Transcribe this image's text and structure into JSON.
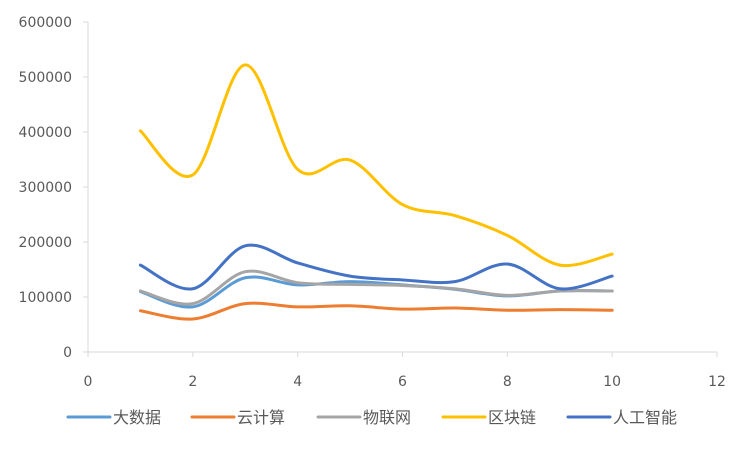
{
  "chart_data": {
    "type": "line",
    "smooth": true,
    "xlim": [
      0,
      12
    ],
    "ylim": [
      0,
      600000
    ],
    "xticks": [
      "0",
      "2",
      "4",
      "6",
      "8",
      "10",
      "12"
    ],
    "yticks": [
      "0",
      "100000",
      "200000",
      "300000",
      "400000",
      "500000",
      "600000"
    ],
    "grid": false,
    "legend_position": "bottom",
    "x": [
      1,
      2,
      3,
      4,
      5,
      6,
      7,
      8,
      9,
      10
    ],
    "series": [
      {
        "name": "大数据",
        "color": "#5B9BD5",
        "values": [
          110000,
          82000,
          135000,
          122000,
          128000,
          122000,
          114000,
          102000,
          111000,
          111000
        ]
      },
      {
        "name": "云计算",
        "color": "#ED7D31",
        "values": [
          75000,
          60000,
          88000,
          82000,
          84000,
          78000,
          80000,
          76000,
          77000,
          76000
        ]
      },
      {
        "name": "物联网",
        "color": "#A5A5A5",
        "values": [
          111000,
          88000,
          146000,
          126000,
          123000,
          121000,
          115000,
          103000,
          111000,
          111000
        ]
      },
      {
        "name": "区块链",
        "color": "#FFC000",
        "values": [
          402000,
          322000,
          522000,
          332000,
          349000,
          268000,
          248000,
          212000,
          158000,
          178000
        ]
      },
      {
        "name": "人工智能",
        "color": "#4472C4",
        "values": [
          158000,
          115000,
          193000,
          162000,
          138000,
          131000,
          128000,
          160000,
          115000,
          138000
        ]
      }
    ]
  }
}
